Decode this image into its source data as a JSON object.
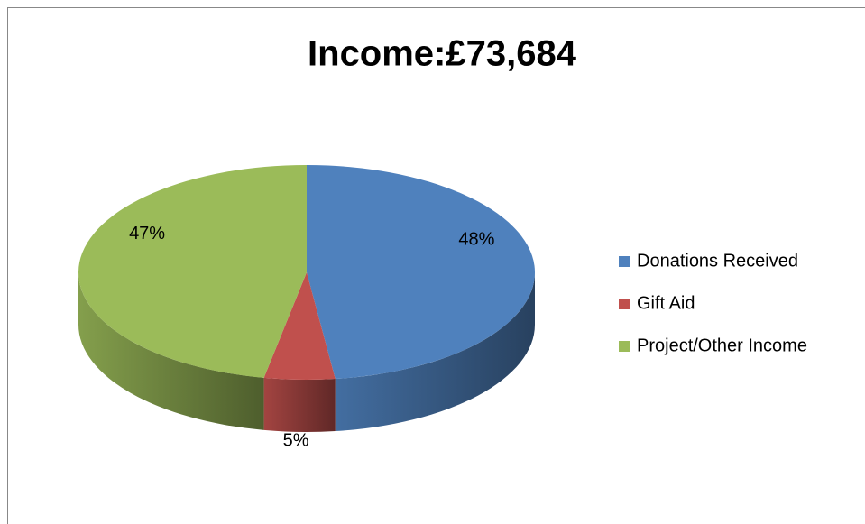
{
  "chart_data": {
    "type": "pie",
    "title": "Income:£73,684",
    "categories": [
      "Donations Received",
      "Gift Aid",
      "Project/Other Income"
    ],
    "values": [
      48,
      5,
      47
    ],
    "value_labels": [
      "48%",
      "5%",
      "47%"
    ],
    "colors": [
      "#4f81bd",
      "#c0504d",
      "#9bbb59"
    ],
    "legend": "right"
  }
}
